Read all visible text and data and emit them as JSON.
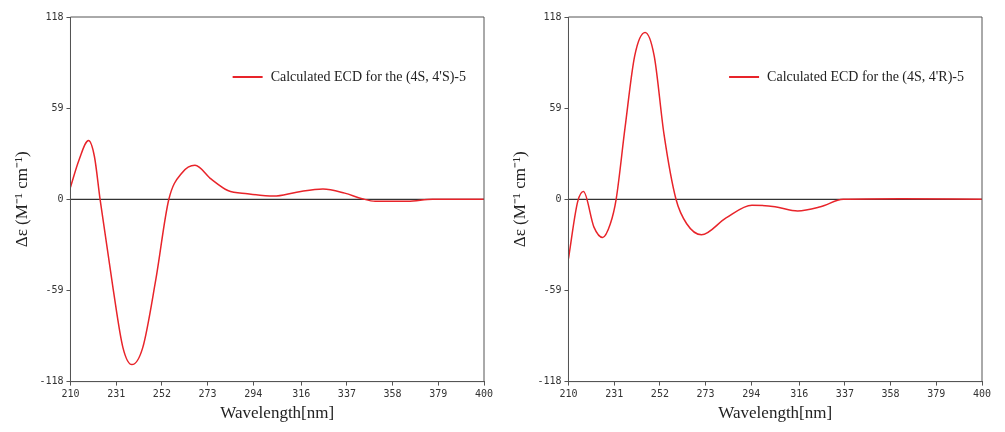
{
  "chart_data": [
    {
      "type": "line",
      "xlabel": "Wavelength[nm]",
      "ylabel": "Δε (M⁻¹ cm⁻¹)",
      "xlim": [
        210,
        400
      ],
      "xticks": [
        210,
        231,
        252,
        273,
        294,
        316,
        337,
        358,
        379,
        400
      ],
      "ylim": [
        -118,
        118
      ],
      "yticks": [
        -118,
        -59,
        0,
        59,
        118
      ],
      "grid": false,
      "legend": "top right",
      "marker": "none",
      "line_style": "solid",
      "ref_lines": [
        {
          "axis": "y",
          "value": 0,
          "color": "#000000"
        }
      ],
      "series": [
        {
          "name": "Calculated ECD for the (4S, 4'S)-5",
          "color": "#e8242a",
          "x": [
            210,
            213.8,
            218.3,
            221,
            223.6,
            229.6,
            234.1,
            238.2,
            243.2,
            249.2,
            255.2,
            261.2,
            267.2,
            274.7,
            282.3,
            291.3,
            303.4,
            313.9,
            326,
            336,
            344,
            350,
            365,
            376.4,
            400
          ],
          "values": [
            7.8,
            25,
            38,
            27.7,
            0,
            -58,
            -96,
            -107,
            -96,
            -52,
            0,
            17,
            22,
            13,
            5.7,
            3.6,
            2.1,
            4.6,
            6.7,
            4,
            0.4,
            -1.3,
            -1.3,
            0,
            0
          ]
        }
      ]
    },
    {
      "type": "line",
      "xlabel": "Wavelength[nm]",
      "ylabel": "Δε (M⁻¹ cm⁻¹)",
      "xlim": [
        210,
        400
      ],
      "xticks": [
        210,
        231,
        252,
        273,
        294,
        316,
        337,
        358,
        379,
        400
      ],
      "ylim": [
        -118,
        118
      ],
      "yticks": [
        -118,
        -59,
        0,
        59,
        118
      ],
      "grid": false,
      "legend": "top right",
      "marker": "none",
      "line_style": "solid",
      "ref_lines": [
        {
          "axis": "y",
          "value": 0,
          "color": "#000000"
        }
      ],
      "series": [
        {
          "name": "Calculated ECD for the (4S, 4'R)-5",
          "color": "#e8242a",
          "x": [
            210,
            214.2,
            216.9,
            221.7,
            225.7,
            229.2,
            231.9,
            236,
            240.4,
            245.2,
            249.4,
            253.9,
            259.4,
            264.4,
            271.1,
            282.4,
            294.3,
            304.9,
            315.3,
            325.8,
            336.3,
            362.5,
            400
          ],
          "values": [
            -38.4,
            -1.7,
            5,
            -18,
            -24.7,
            -16,
            0,
            46.5,
            92.7,
            108,
            92.7,
            42,
            0,
            -16,
            -23,
            -12,
            -3.8,
            -4.8,
            -7.5,
            -4.8,
            0,
            0.4,
            0
          ]
        }
      ]
    }
  ]
}
